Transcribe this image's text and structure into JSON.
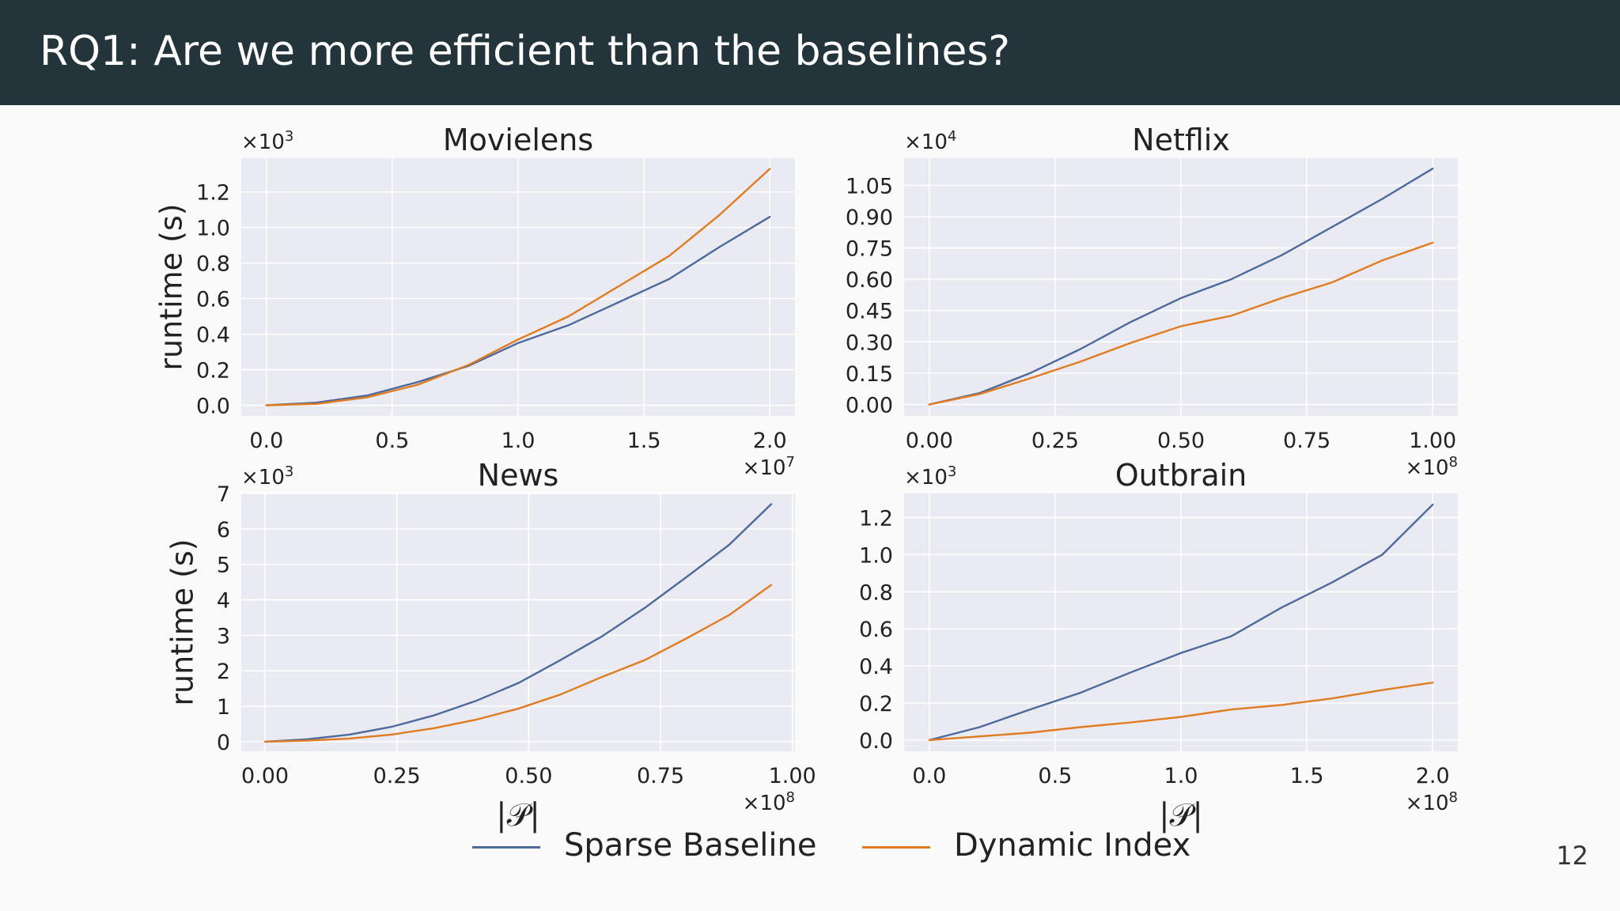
{
  "slide": {
    "title": "RQ1: Are we more efficient than the baselines?",
    "page_number": "12"
  },
  "colors": {
    "header_bg": "#23353b",
    "plot_bg": "#eaeaf2",
    "grid": "#ffffff",
    "sparse_baseline": "#4c6a9c",
    "dynamic_index": "#e07b20"
  },
  "legend": {
    "items": [
      {
        "label": "Sparse Baseline",
        "color": "#4c6a9c"
      },
      {
        "label": "Dynamic Index",
        "color": "#e07b20"
      }
    ]
  },
  "chart_data": [
    {
      "type": "line",
      "title": "Movielens",
      "xlabel": "",
      "ylabel": "runtime (s)",
      "y_multiplier": "3",
      "x_multiplier": "7",
      "xlim": [
        -0.1,
        2.1
      ],
      "ylim": [
        -0.06,
        1.39
      ],
      "xticks": [
        "0.0",
        "0.5",
        "1.0",
        "1.5",
        "2.0"
      ],
      "xtick_values": [
        0.0,
        0.5,
        1.0,
        1.5,
        2.0
      ],
      "yticks": [
        "0.0",
        "0.2",
        "0.4",
        "0.6",
        "0.8",
        "1.0",
        "1.2"
      ],
      "ytick_values": [
        0.0,
        0.2,
        0.4,
        0.6,
        0.8,
        1.0,
        1.2
      ],
      "grid": true,
      "series": [
        {
          "name": "Sparse Baseline",
          "color": "#4c6a9c",
          "x": [
            0.0,
            0.2,
            0.4,
            0.6,
            0.8,
            1.0,
            1.2,
            1.4,
            1.6,
            1.8,
            2.0
          ],
          "y": [
            0.0,
            0.015,
            0.055,
            0.13,
            0.22,
            0.35,
            0.45,
            0.58,
            0.71,
            0.89,
            1.06
          ]
        },
        {
          "name": "Dynamic Index",
          "color": "#e07b20",
          "x": [
            0.0,
            0.2,
            0.4,
            0.6,
            0.8,
            1.0,
            1.2,
            1.4,
            1.6,
            1.8,
            2.0
          ],
          "y": [
            0.0,
            0.008,
            0.045,
            0.115,
            0.225,
            0.37,
            0.5,
            0.67,
            0.84,
            1.07,
            1.33
          ]
        }
      ]
    },
    {
      "type": "line",
      "title": "Netflix",
      "xlabel": "",
      "ylabel": "",
      "y_multiplier": "4",
      "x_multiplier": "8",
      "xlim": [
        -0.05,
        1.05
      ],
      "ylim": [
        -0.055,
        1.18
      ],
      "xticks": [
        "0.00",
        "0.25",
        "0.50",
        "0.75",
        "1.00"
      ],
      "xtick_values": [
        0.0,
        0.25,
        0.5,
        0.75,
        1.0
      ],
      "yticks": [
        "0.00",
        "0.15",
        "0.30",
        "0.45",
        "0.60",
        "0.75",
        "0.90",
        "1.05"
      ],
      "ytick_values": [
        0.0,
        0.15,
        0.3,
        0.45,
        0.6,
        0.75,
        0.9,
        1.05
      ],
      "grid": true,
      "series": [
        {
          "name": "Sparse Baseline",
          "color": "#4c6a9c",
          "x": [
            0.0,
            0.1,
            0.2,
            0.3,
            0.4,
            0.5,
            0.6,
            0.7,
            0.8,
            0.9,
            1.0
          ],
          "y": [
            0.0,
            0.055,
            0.15,
            0.265,
            0.395,
            0.51,
            0.6,
            0.715,
            0.85,
            0.985,
            1.13
          ]
        },
        {
          "name": "Dynamic Index",
          "color": "#e07b20",
          "x": [
            0.0,
            0.1,
            0.2,
            0.3,
            0.4,
            0.5,
            0.6,
            0.7,
            0.8,
            0.9,
            1.0
          ],
          "y": [
            0.0,
            0.05,
            0.125,
            0.205,
            0.295,
            0.375,
            0.425,
            0.51,
            0.585,
            0.69,
            0.775
          ]
        }
      ]
    },
    {
      "type": "line",
      "title": "News",
      "xlabel": "|𝒫|",
      "ylabel": "runtime (s)",
      "y_multiplier": "3",
      "x_multiplier": "8",
      "xlim": [
        -0.045,
        1.005
      ],
      "ylim": [
        -0.27,
        7.0
      ],
      "xticks": [
        "0.00",
        "0.25",
        "0.50",
        "0.75",
        "1.00"
      ],
      "xtick_values": [
        0.0,
        0.25,
        0.5,
        0.75,
        1.0
      ],
      "yticks": [
        "0",
        "1",
        "2",
        "3",
        "4",
        "5",
        "6",
        "7"
      ],
      "ytick_values": [
        0,
        1,
        2,
        3,
        4,
        5,
        6,
        7
      ],
      "grid": true,
      "series": [
        {
          "name": "Sparse Baseline",
          "color": "#4c6a9c",
          "x": [
            0.0,
            0.08,
            0.16,
            0.24,
            0.32,
            0.4,
            0.48,
            0.56,
            0.64,
            0.72,
            0.8,
            0.88,
            0.96
          ],
          "y": [
            0.0,
            0.07,
            0.2,
            0.42,
            0.74,
            1.15,
            1.65,
            2.3,
            2.98,
            3.77,
            4.65,
            5.55,
            6.7
          ]
        },
        {
          "name": "Dynamic Index",
          "color": "#e07b20",
          "x": [
            0.0,
            0.08,
            0.16,
            0.24,
            0.32,
            0.4,
            0.48,
            0.56,
            0.64,
            0.72,
            0.8,
            0.88,
            0.96
          ],
          "y": [
            0.0,
            0.03,
            0.09,
            0.2,
            0.38,
            0.62,
            0.93,
            1.33,
            1.83,
            2.3,
            2.92,
            3.57,
            4.42
          ]
        }
      ]
    },
    {
      "type": "line",
      "title": "Outbrain",
      "xlabel": "|𝒫|",
      "ylabel": "",
      "y_multiplier": "3",
      "x_multiplier": "8",
      "xlim": [
        -0.1,
        2.1
      ],
      "ylim": [
        -0.06,
        1.33
      ],
      "xticks": [
        "0.0",
        "0.5",
        "1.0",
        "1.5",
        "2.0"
      ],
      "xtick_values": [
        0.0,
        0.5,
        1.0,
        1.5,
        2.0
      ],
      "yticks": [
        "0.0",
        "0.2",
        "0.4",
        "0.6",
        "0.8",
        "1.0",
        "1.2"
      ],
      "ytick_values": [
        0.0,
        0.2,
        0.4,
        0.6,
        0.8,
        1.0,
        1.2
      ],
      "grid": true,
      "series": [
        {
          "name": "Sparse Baseline",
          "color": "#4c6a9c",
          "x": [
            0.0,
            0.2,
            0.4,
            0.6,
            0.8,
            1.0,
            1.2,
            1.4,
            1.6,
            1.8,
            2.0
          ],
          "y": [
            0.0,
            0.07,
            0.165,
            0.255,
            0.365,
            0.47,
            0.56,
            0.715,
            0.85,
            1.0,
            1.27
          ]
        },
        {
          "name": "Dynamic Index",
          "color": "#e07b20",
          "x": [
            0.0,
            0.2,
            0.4,
            0.6,
            0.8,
            1.0,
            1.2,
            1.4,
            1.6,
            1.8,
            2.0
          ],
          "y": [
            0.0,
            0.02,
            0.04,
            0.07,
            0.095,
            0.125,
            0.165,
            0.19,
            0.225,
            0.27,
            0.31
          ]
        }
      ]
    }
  ]
}
